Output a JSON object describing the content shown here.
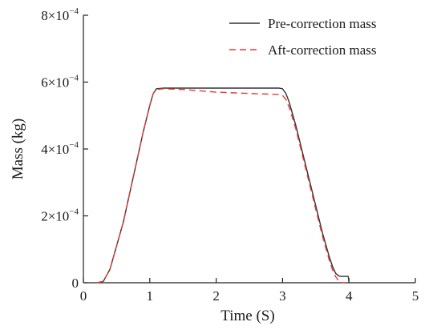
{
  "chart_data": {
    "type": "line",
    "title": "",
    "xlabel": "Time (S)",
    "ylabel": "Mass (kg)",
    "xlim": [
      0,
      5
    ],
    "ylim": [
      0,
      0.0008
    ],
    "grid": false,
    "legend_position": "top-right",
    "x_ticks": [
      {
        "value": 0,
        "label": "0"
      },
      {
        "value": 1,
        "label": "1"
      },
      {
        "value": 2,
        "label": "2"
      },
      {
        "value": 3,
        "label": "3"
      },
      {
        "value": 4,
        "label": "4"
      },
      {
        "value": 5,
        "label": "5"
      }
    ],
    "y_ticks": [
      {
        "value": 0,
        "label": "0",
        "mantissa": "0",
        "exponent": ""
      },
      {
        "value": 0.0002,
        "label": "2×10⁻⁴",
        "mantissa": "2×10",
        "exponent": "−4"
      },
      {
        "value": 0.0004,
        "label": "4×10⁻⁴",
        "mantissa": "4×10",
        "exponent": "−4"
      },
      {
        "value": 0.0006,
        "label": "6×10⁻⁴",
        "mantissa": "6×10",
        "exponent": "−4"
      },
      {
        "value": 0.0008,
        "label": "8×10⁻⁴",
        "mantissa": "8×10",
        "exponent": "−4"
      }
    ],
    "series": [
      {
        "name": "Pre-correction mass",
        "color": "#333333",
        "style": "solid",
        "x": [
          0.2,
          0.3,
          0.4,
          0.5,
          0.6,
          0.7,
          0.8,
          0.9,
          1.0,
          1.05,
          1.1,
          1.2,
          1.5,
          2.0,
          2.5,
          2.95,
          3.0,
          3.05,
          3.1,
          3.2,
          3.3,
          3.4,
          3.5,
          3.6,
          3.7,
          3.75,
          3.8,
          3.85,
          3.9,
          3.95,
          3.99,
          4.0
        ],
        "y": [
          0,
          4e-06,
          4e-05,
          0.00011,
          0.00018,
          0.00027,
          0.00036,
          0.00045,
          0.00053,
          0.000565,
          0.00058,
          0.000582,
          0.000582,
          0.000582,
          0.000582,
          0.000582,
          0.00058,
          0.000566,
          0.00054,
          0.00047,
          0.00039,
          0.00031,
          0.00023,
          0.00015,
          8e-05,
          5e-05,
          2.8e-05,
          2e-05,
          1.9e-05,
          1.9e-05,
          1.9e-05,
          0
        ]
      },
      {
        "name": "Aft-correction mass",
        "color": "#e53935",
        "style": "dashed",
        "x": [
          0.2,
          0.3,
          0.4,
          0.5,
          0.6,
          0.7,
          0.8,
          0.9,
          1.0,
          1.05,
          1.1,
          1.2,
          1.5,
          2.0,
          2.5,
          2.95,
          3.0,
          3.05,
          3.1,
          3.2,
          3.3,
          3.4,
          3.5,
          3.6,
          3.7,
          3.75,
          3.8,
          3.85,
          3.9,
          3.95
        ],
        "y": [
          0,
          4e-06,
          4e-05,
          0.00011,
          0.00018,
          0.00027,
          0.00036,
          0.00045,
          0.00053,
          0.000565,
          0.000578,
          0.00058,
          0.000578,
          0.00057,
          0.000566,
          0.000563,
          0.00056,
          0.000548,
          0.000525,
          0.00046,
          0.00038,
          0.0003,
          0.00022,
          0.00014,
          7e-05,
          4e-05,
          1.8e-05,
          5e-06,
          0,
          0
        ]
      }
    ]
  }
}
